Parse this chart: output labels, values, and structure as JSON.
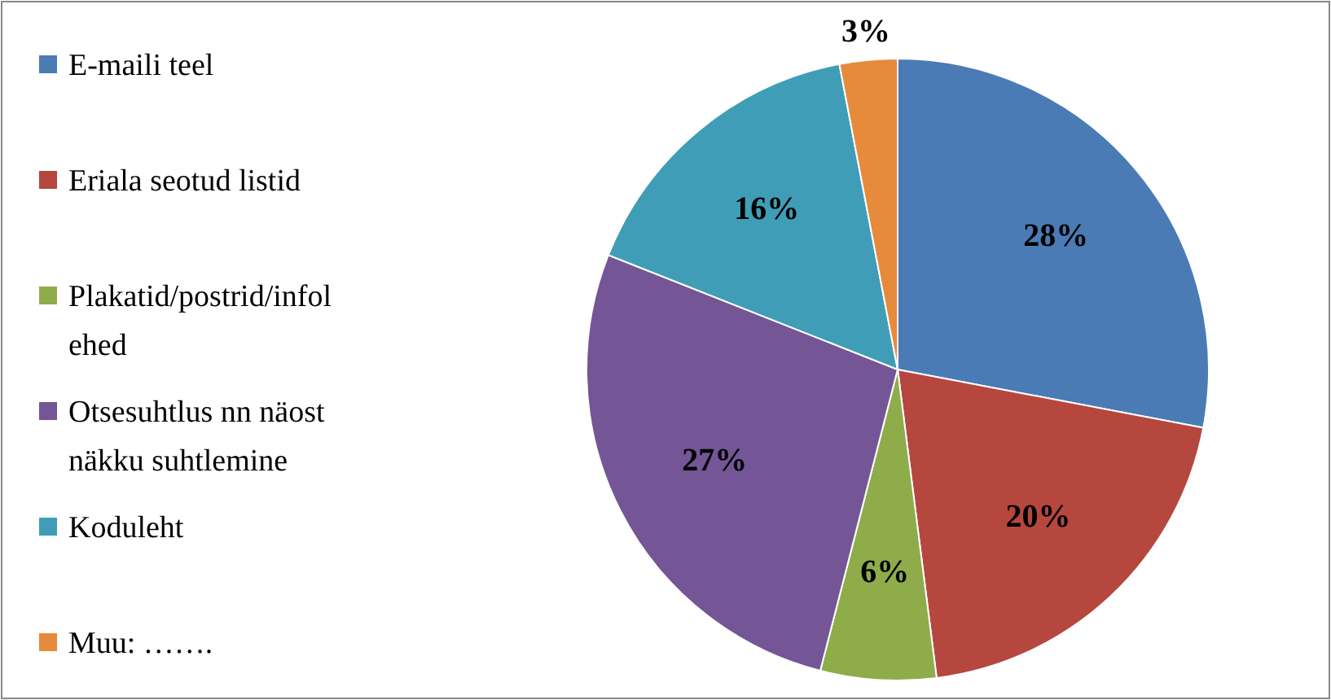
{
  "chart_data": {
    "type": "pie",
    "categories": [
      "E-maili teel",
      "Eriala seotud listid",
      "Plakatid/postrid/infolehed",
      "Otsesuhtlus nn näost näkku suhtlemine",
      "Koduleht",
      "Muu: ……."
    ],
    "values": [
      28,
      20,
      6,
      27,
      16,
      3
    ],
    "colors": [
      "#4a7bb5",
      "#b5473f",
      "#8fac4a",
      "#745596",
      "#409db8",
      "#e68a3c"
    ],
    "value_labels": [
      "28%",
      "20%",
      "6%",
      "27%",
      "16%",
      "3%"
    ],
    "legend": "left"
  }
}
